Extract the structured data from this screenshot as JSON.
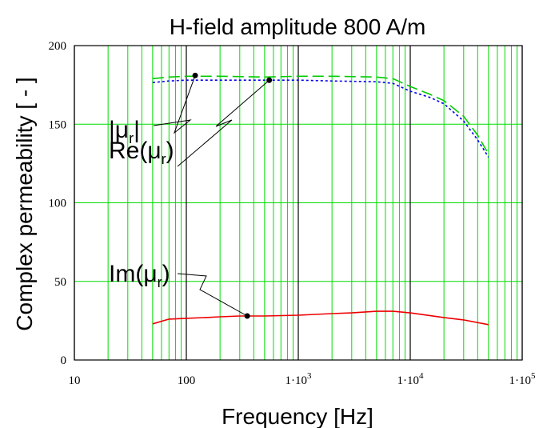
{
  "chart_data": {
    "type": "line",
    "title": "H-field amplitude 800 A/m",
    "xlabel": "Frequency [Hz]",
    "ylabel": "Complex permeability [ - ]",
    "xscale": "log",
    "xlim": [
      10,
      100000
    ],
    "ylim": [
      0,
      200
    ],
    "grid": true,
    "grid_color": "#00dd00",
    "x_ticks": [
      {
        "value": 10,
        "label": "10",
        "base": "",
        "exp": ""
      },
      {
        "value": 100,
        "label": "100",
        "base": "",
        "exp": ""
      },
      {
        "value": 1000,
        "label": "",
        "base": "1·10",
        "exp": "3"
      },
      {
        "value": 10000,
        "label": "",
        "base": "1·10",
        "exp": "4"
      },
      {
        "value": 100000,
        "label": "",
        "base": "1·10",
        "exp": "5"
      }
    ],
    "y_ticks": [
      0,
      50,
      100,
      150,
      200
    ],
    "series": [
      {
        "key": "abs",
        "color": "#00cc00",
        "dash": "14,6",
        "x": [
          50,
          70,
          100,
          200,
          500,
          1000,
          2000,
          5000,
          7000,
          10000,
          15000,
          20000,
          30000,
          40000,
          50000
        ],
        "y": [
          179,
          180,
          180.5,
          180.5,
          180,
          180.5,
          180.5,
          180,
          179,
          174,
          169,
          165,
          155,
          143,
          131
        ]
      },
      {
        "key": "re",
        "color": "#0000ee",
        "dash": "3,3",
        "x": [
          50,
          70,
          100,
          200,
          500,
          1000,
          2000,
          5000,
          7000,
          10000,
          15000,
          20000,
          30000,
          40000,
          50000
        ],
        "y": [
          176.5,
          177.5,
          178,
          178,
          178,
          178,
          177.5,
          177,
          176,
          171,
          167,
          163,
          152,
          140,
          129
        ]
      },
      {
        "key": "im",
        "color": "#ee0000",
        "dash": "",
        "x": [
          50,
          70,
          100,
          150,
          200,
          300,
          500,
          1000,
          2000,
          3000,
          5000,
          7000,
          10000,
          20000,
          30000,
          50000
        ],
        "y": [
          23,
          26,
          26.5,
          27,
          27.5,
          28,
          28,
          28.5,
          29.5,
          30,
          31,
          31,
          30,
          27,
          25.5,
          22.5
        ]
      }
    ],
    "annotations": [
      {
        "key": "abs",
        "text_prefix": "|μ",
        "sub": "r",
        "text_suffix": "|",
        "point_x": 120,
        "point_y": 181
      },
      {
        "key": "re",
        "text_prefix": "Re(μ",
        "sub": "r",
        "text_suffix": ")",
        "point_x": 550,
        "point_y": 178
      },
      {
        "key": "im",
        "text_prefix": "Im(μ",
        "sub": "r",
        "text_suffix": ")",
        "point_x": 350,
        "point_y": 28
      }
    ]
  }
}
